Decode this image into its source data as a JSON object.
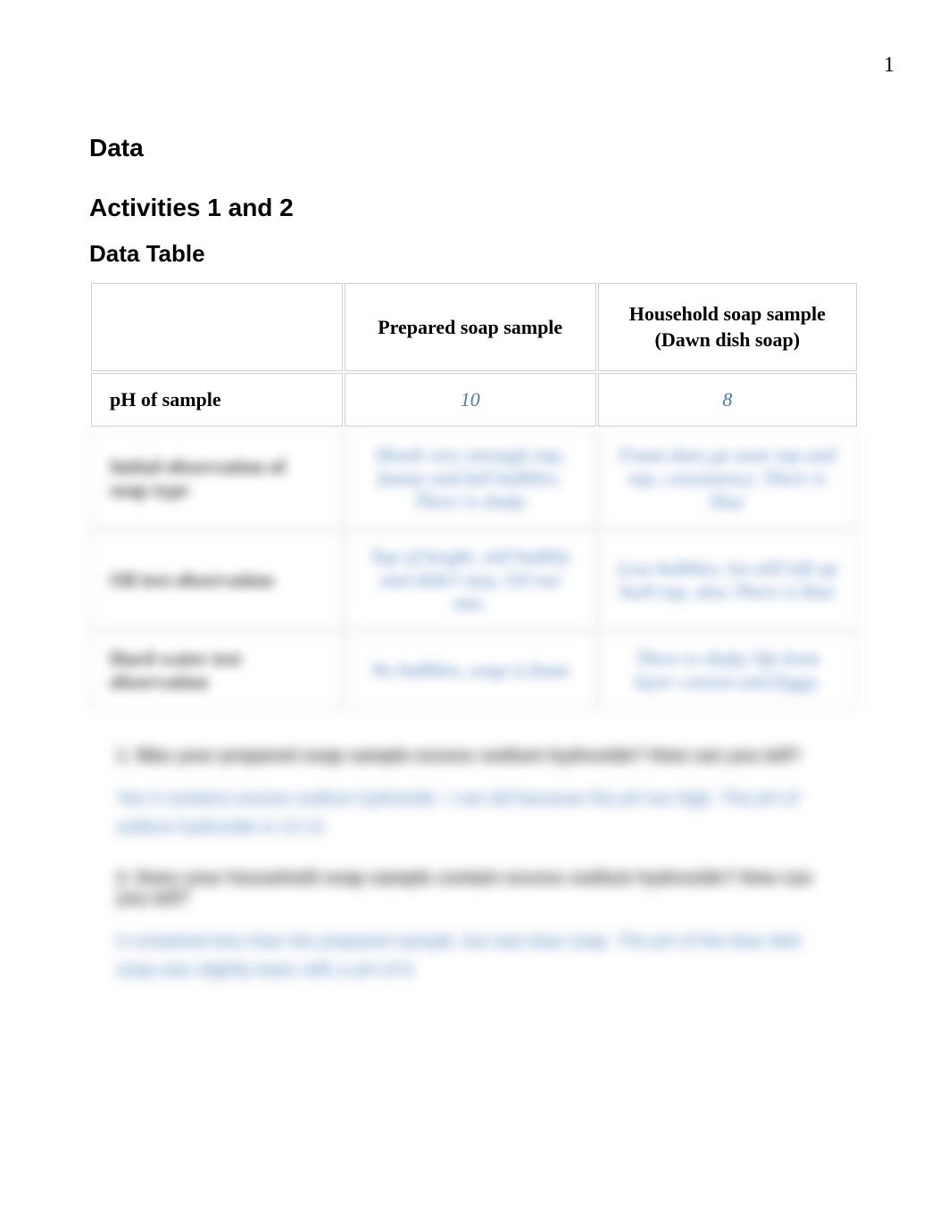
{
  "page_number": "1",
  "headings": {
    "data": "Data",
    "activities": "Activities 1 and 2",
    "data_table": "Data Table"
  },
  "table": {
    "columns": {
      "blank": "",
      "prepared": "Prepared soap sample",
      "household_line1": "Household soap sample",
      "household_line2": "(Dawn dish soap)"
    },
    "rows": [
      {
        "label": "pH of sample",
        "prepared": "10",
        "household": "8",
        "blurred": false
      },
      {
        "label": "Initial observation of soap type",
        "prepared": "Shook very strongly top, foamy and full bubbles. There is shaky",
        "household": "Foam does go near top and top, consistency. There is blue",
        "blurred": true
      },
      {
        "label": "Oil test observation",
        "prepared": "Top of height, still bubbly and didn't stay, Oil not mix.",
        "household": "Less bubbles, lot still left up built top, also There is blue",
        "blurred": true
      },
      {
        "label": "Hard water test observation",
        "prepared": "No bubbles, soap is foam",
        "household": "There is shaky life from layer consist and foggy.",
        "blurred": true
      }
    ]
  },
  "questions": [
    {
      "number": "1",
      "text": "Was your prepared soap sample excess sodium hydroxide? How can you tell?",
      "answer": "Yes it contains excess sodium hydroxide. I can tell because the pH too high. The pH of sodium hydroxide is 13-14"
    },
    {
      "number": "2",
      "text": "Does your household soap sample contain excess sodium hydroxide? How can you tell?",
      "answer": "It contained less than the prepared sample, but was blue soap. The pH of the blue dish soap was slightly basic with a pH of 8."
    }
  ],
  "colors": {
    "text_primary": "#000000",
    "text_value": "#4a7bb8",
    "border": "#d0d0d0",
    "background": "#ffffff"
  }
}
